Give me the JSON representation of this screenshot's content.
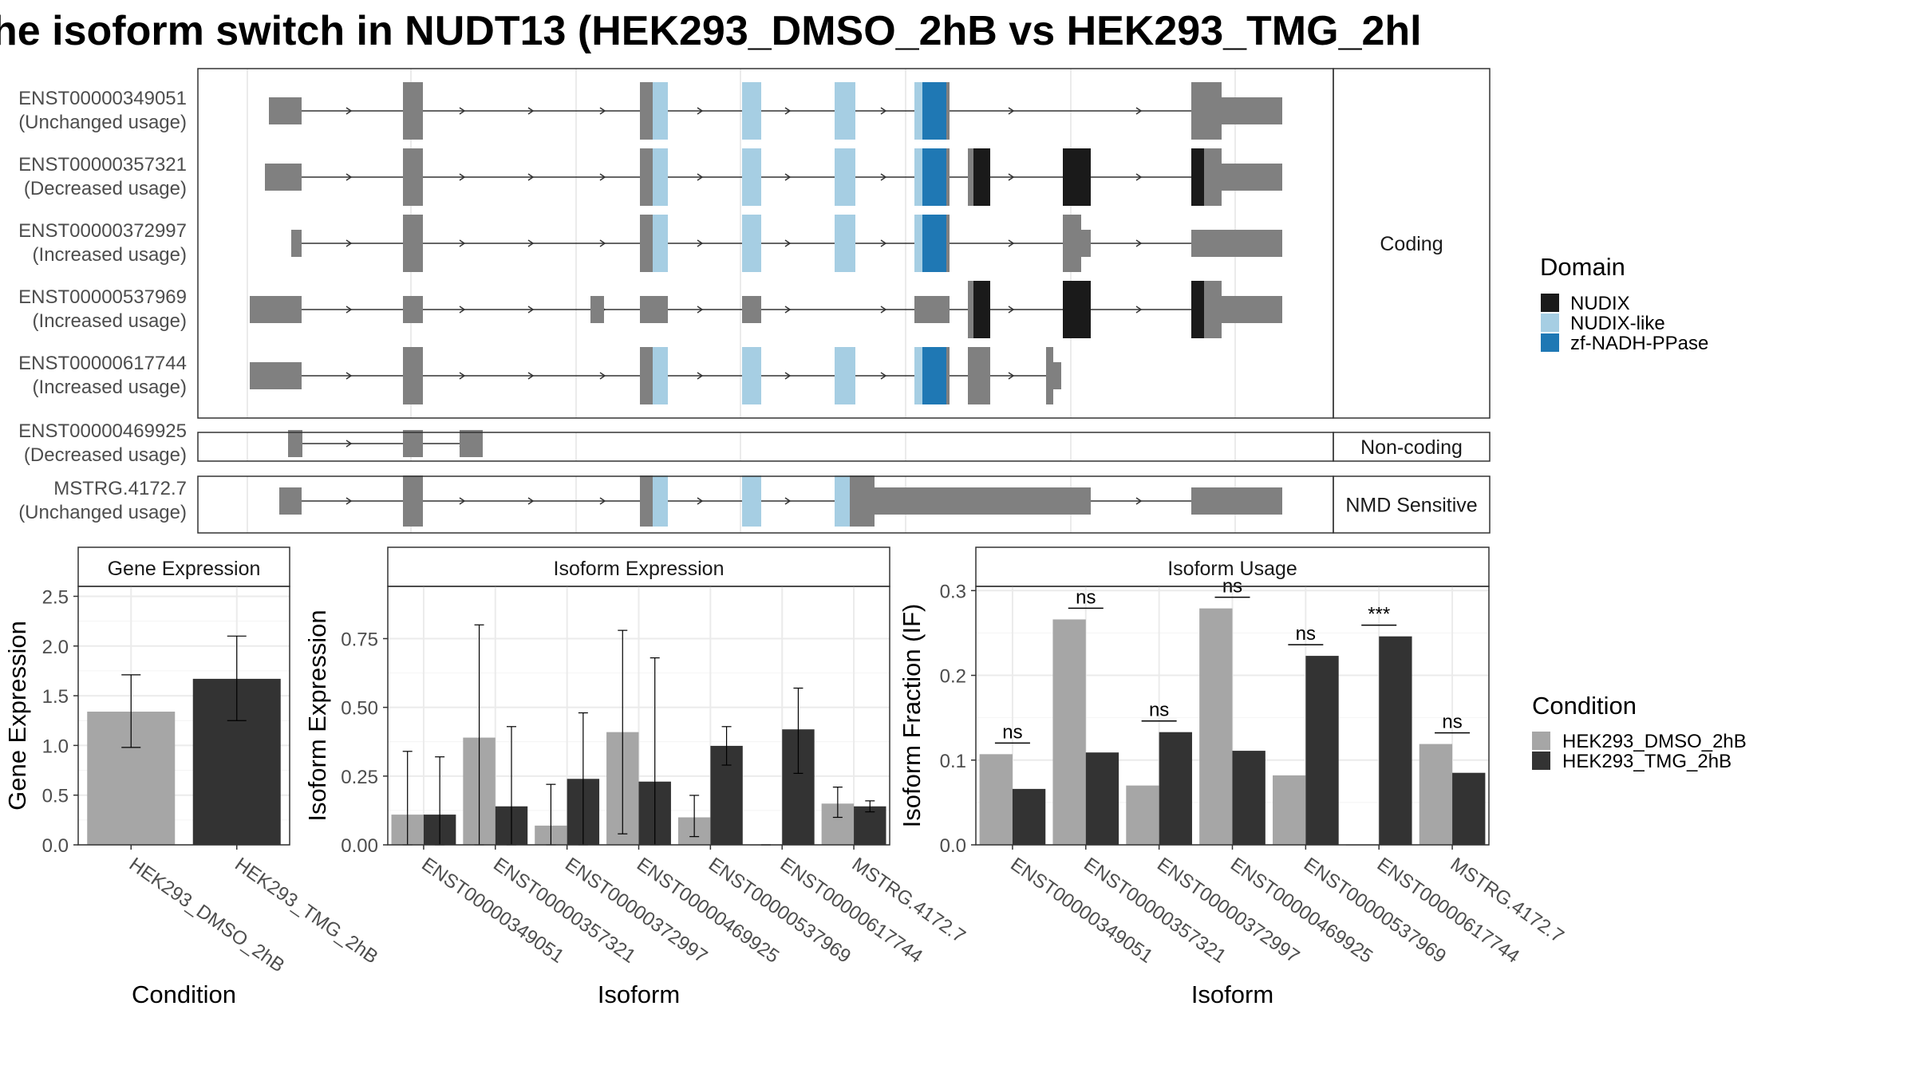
{
  "title": "he isoform switch in NUDT13 (HEK293_DMSO_2hB vs HEK293_TMG_2hl",
  "colors": {
    "exon_grey": "#808080",
    "NUDIX": "#1a1a1a",
    "NUDIX-like": "#a6cee3",
    "zf-NADH-PPase": "#1f78b4",
    "dmso": "#a6a6a6",
    "tmg": "#333333"
  },
  "structure": {
    "isoforms": [
      {
        "id": "ENST00000349051",
        "usage": "(Unchanged usage)",
        "group": "Coding"
      },
      {
        "id": "ENST00000357321",
        "usage": "(Decreased usage)",
        "group": "Coding"
      },
      {
        "id": "ENST00000372997",
        "usage": "(Increased usage)",
        "group": "Coding"
      },
      {
        "id": "ENST00000537969",
        "usage": "(Increased usage)",
        "group": "Coding"
      },
      {
        "id": "ENST00000617744",
        "usage": "(Increased usage)",
        "group": "Coding"
      },
      {
        "id": "ENST00000469925",
        "usage": "(Decreased usage)",
        "group": "Non-coding"
      },
      {
        "id": "MSTRG.4172.7",
        "usage": "(Unchanged usage)",
        "group": "NMD Sensitive"
      }
    ],
    "groups": [
      "Coding",
      "Non-coding",
      "NMD Sensitive"
    ]
  },
  "legend_domain": {
    "title": "Domain",
    "items": [
      {
        "label": "NUDIX",
        "color": "#1a1a1a"
      },
      {
        "label": "NUDIX-like",
        "color": "#a6cee3"
      },
      {
        "label": "zf-NADH-PPase",
        "color": "#1f78b4"
      }
    ]
  },
  "legend_condition": {
    "title": "Condition",
    "items": [
      {
        "label": "HEK293_DMSO_2hB",
        "color": "#a6a6a6"
      },
      {
        "label": "HEK293_TMG_2hB",
        "color": "#333333"
      }
    ]
  },
  "chart_data": [
    {
      "type": "bar",
      "title": "Gene Expression",
      "xlabel": "Condition",
      "ylabel": "Gene Expression",
      "ylim": [
        0,
        2.6
      ],
      "yticks": [
        0.0,
        0.5,
        1.0,
        1.5,
        2.0,
        2.5
      ],
      "categories": [
        "HEK293_DMSO_2hB",
        "HEK293_TMG_2hB"
      ],
      "values": [
        1.34,
        1.67
      ],
      "error_low": [
        0.98,
        1.25
      ],
      "error_high": [
        1.71,
        2.1
      ]
    },
    {
      "type": "bar",
      "title": "Isoform Expression",
      "xlabel": "Isoform",
      "ylabel": "Isoform Expression",
      "ylim": [
        0,
        0.94
      ],
      "yticks": [
        0.0,
        0.25,
        0.5,
        0.75
      ],
      "categories": [
        "ENST00000349051",
        "ENST00000357321",
        "ENST00000372997",
        "ENST00000469925",
        "ENST00000537969",
        "ENST00000617744",
        "MSTRG.4172.7"
      ],
      "series": [
        {
          "name": "HEK293_DMSO_2hB",
          "values": [
            0.11,
            0.39,
            0.07,
            0.41,
            0.1,
            0.0,
            0.15
          ],
          "error_low": [
            0.0,
            0.0,
            0.0,
            0.04,
            0.03,
            0.0,
            0.1
          ],
          "error_high": [
            0.34,
            0.8,
            0.22,
            0.78,
            0.18,
            0.0,
            0.21
          ]
        },
        {
          "name": "HEK293_TMG_2hB",
          "values": [
            0.11,
            0.14,
            0.24,
            0.23,
            0.36,
            0.42,
            0.14
          ],
          "error_low": [
            0.0,
            0.0,
            0.0,
            0.0,
            0.29,
            0.26,
            0.12
          ],
          "error_high": [
            0.32,
            0.43,
            0.48,
            0.68,
            0.43,
            0.57,
            0.16
          ]
        }
      ]
    },
    {
      "type": "bar",
      "title": "Isoform Usage",
      "xlabel": "Isoform",
      "ylabel": "Isoform Fraction (IF)",
      "ylim": [
        0,
        0.305
      ],
      "yticks": [
        0.0,
        0.1,
        0.2,
        0.3
      ],
      "categories": [
        "ENST00000349051",
        "ENST00000357321",
        "ENST00000372997",
        "ENST00000469925",
        "ENST00000537969",
        "ENST00000617744",
        "MSTRG.4172.7"
      ],
      "series": [
        {
          "name": "HEK293_DMSO_2hB",
          "values": [
            0.107,
            0.266,
            0.07,
            0.279,
            0.082,
            0.0,
            0.119
          ]
        },
        {
          "name": "HEK293_TMG_2hB",
          "values": [
            0.066,
            0.109,
            0.133,
            0.111,
            0.223,
            0.246,
            0.085
          ]
        }
      ],
      "significance": [
        "ns",
        "ns",
        "ns",
        "ns",
        "ns",
        "***",
        "ns"
      ]
    }
  ]
}
